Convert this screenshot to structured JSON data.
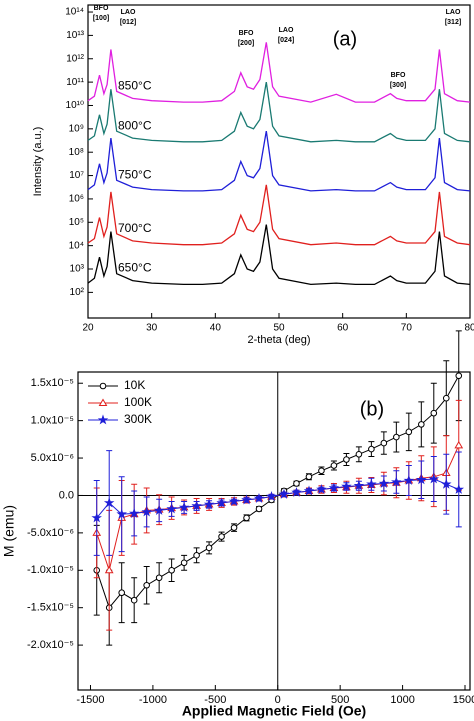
{
  "chart_data": [
    {
      "type": "line",
      "title": "(a)",
      "x_label": "2-theta (deg)",
      "y_label": "Intensity (a.u.)",
      "yscale": "log",
      "xlim": [
        20,
        80
      ],
      "xticks": [
        20,
        30,
        40,
        50,
        60,
        70,
        80
      ],
      "ylim": [
        8,
        200000000000000.0
      ],
      "yticks": [
        {
          "value": 100,
          "label": "10²"
        },
        {
          "value": 1000,
          "label": "10³"
        },
        {
          "value": 10000,
          "label": "10⁴"
        },
        {
          "value": 100000,
          "label": "10⁵"
        },
        {
          "value": 1000000,
          "label": "10⁶"
        },
        {
          "value": 10000000,
          "label": "10⁷"
        },
        {
          "value": 100000000,
          "label": "10⁸"
        },
        {
          "value": 1000000000,
          "label": "10⁹"
        },
        {
          "value": 10000000000,
          "label": "10¹⁰"
        },
        {
          "value": 100000000000,
          "label": "10¹¹"
        },
        {
          "value": 1000000000000,
          "label": "10¹²"
        },
        {
          "value": 10000000000000,
          "label": "10¹³"
        },
        {
          "value": 100000000000000,
          "label": "10¹⁴"
        }
      ],
      "annotations": [
        [
          "BFO",
          "[100]"
        ],
        [
          "LAO",
          "[012]"
        ],
        [
          "BFO",
          "[200]"
        ],
        [
          "LAO",
          "[024]"
        ],
        [
          "BFO",
          "[300]"
        ],
        [
          "LAO",
          "[312]"
        ]
      ],
      "x": [
        20,
        21,
        21.8,
        22.5,
        23,
        23.6,
        24.5,
        27,
        30,
        35,
        38,
        41,
        43,
        44,
        45,
        46,
        47,
        48,
        49,
        50,
        55,
        59,
        62,
        65,
        67.5,
        68.5,
        70,
        73,
        74.5,
        75.2,
        76,
        78,
        80
      ],
      "series": [
        {
          "name": "650°C",
          "color": "#000000",
          "values": [
            250,
            400,
            3200,
            500,
            1300,
            40000,
            630,
            320,
            250,
            220,
            220,
            250,
            630,
            4000,
            1000,
            800,
            2000,
            80000,
            1000,
            400,
            220,
            250,
            220,
            220,
            500,
            320,
            250,
            250,
            800,
            40000,
            500,
            250,
            220
          ]
        },
        {
          "name": "700°C",
          "color": "#e0201e",
          "values": [
            13000.0,
            20000.0,
            160000.0,
            25000.0,
            63000.0,
            2000000.0,
            32000.0,
            16000.0,
            13000.0,
            11000.0,
            11000.0,
            13000.0,
            32000.0,
            200000.0,
            50000.0,
            40000.0,
            100000.0,
            4000000.0,
            50000.0,
            20000.0,
            11000.0,
            13000.0,
            11000.0,
            11000.0,
            25000.0,
            16000.0,
            13000.0,
            13000.0,
            40000.0,
            2000000.0,
            25000.0,
            13000.0,
            11000.0
          ]
        },
        {
          "name": "750°C",
          "color": "#1f1fd8",
          "values": [
            2500000.0,
            4000000.0,
            32000000.0,
            5000000.0,
            13000000.0,
            400000000.0,
            6300000.0,
            3200000.0,
            2500000.0,
            2200000.0,
            2200000.0,
            2500000.0,
            6300000.0,
            40000000.0,
            10000000.0,
            8000000.0,
            20000000.0,
            800000000.0,
            10000000.0,
            4000000.0,
            2200000.0,
            2500000.0,
            2200000.0,
            2200000.0,
            5000000.0,
            3200000.0,
            2500000.0,
            2500000.0,
            8000000.0,
            400000000.0,
            5000000.0,
            2500000.0,
            2200000.0
          ]
        },
        {
          "name": "800°C",
          "color": "#1a7a72",
          "values": [
            320000000.0,
            500000000.0,
            4000000000.0,
            630000000.0,
            1600000000.0,
            50000000000.0,
            790000000.0,
            400000000.0,
            320000000.0,
            280000000.0,
            280000000.0,
            320000000.0,
            790000000.0,
            5000000000.0,
            1300000000.0,
            1000000000.0,
            2500000000.0,
            100000000000.0,
            1300000000.0,
            500000000.0,
            280000000.0,
            320000000.0,
            280000000.0,
            280000000.0,
            630000000.0,
            400000000.0,
            320000000.0,
            320000000.0,
            1000000000.0,
            50000000000.0,
            630000000.0,
            320000000.0,
            280000000.0
          ]
        },
        {
          "name": "850°C",
          "color": "#e020e0",
          "values": [
            16000000000.0,
            25000000000.0,
            200000000000.0,
            32000000000.0,
            79000000000.0,
            2500000000000.0,
            40000000000.0,
            20000000000.0,
            16000000000.0,
            14000000000.0,
            14000000000.0,
            16000000000.0,
            40000000000.0,
            250000000000.0,
            63000000000.0,
            50000000000.0,
            130000000000.0,
            5000000000000.0,
            63000000000.0,
            25000000000.0,
            14000000000.0,
            30000000000.0,
            14000000000.0,
            14000000000.0,
            32000000000.0,
            20000000000.0,
            16000000000.0,
            16000000000.0,
            50000000000.0,
            2500000000000.0,
            32000000000.0,
            16000000000.0,
            14000000000.0
          ]
        }
      ]
    },
    {
      "type": "errorbar",
      "title": "(b)",
      "x_label": "Applied Magnetic Field (Oe)",
      "y_label": "M (emu)",
      "xlim": [
        -1600,
        1540
      ],
      "xticks": [
        -1500,
        -1000,
        -500,
        0,
        500,
        1000,
        1500
      ],
      "ylim": [
        -2.6e-05,
        1.65e-05
      ],
      "yticks": [
        {
          "value": -2e-05,
          "label": "-2.0x10⁻⁵"
        },
        {
          "value": -1.5e-05,
          "label": "-1.5x10⁻⁵"
        },
        {
          "value": -1e-05,
          "label": "-1.0x10⁻⁵"
        },
        {
          "value": -5e-06,
          "label": "-5.0x10⁻⁶"
        },
        {
          "value": 0,
          "label": "0.0"
        },
        {
          "value": 5e-06,
          "label": "5.0x10⁻⁶"
        },
        {
          "value": 1e-05,
          "label": "1.0x10⁻⁵"
        },
        {
          "value": 1.5e-05,
          "label": "1.5x10⁻⁵"
        }
      ],
      "x": [
        -1450,
        -1350,
        -1250,
        -1150,
        -1050,
        -950,
        -850,
        -750,
        -650,
        -550,
        -450,
        -350,
        -250,
        -150,
        -50,
        50,
        150,
        250,
        350,
        450,
        550,
        650,
        750,
        850,
        950,
        1050,
        1150,
        1250,
        1350,
        1450
      ],
      "series": [
        {
          "name": "10K",
          "color": "#000000",
          "marker": "circle",
          "values": [
            -1e-05,
            -1.5e-05,
            -1.3e-05,
            -1.4e-05,
            -1.2e-05,
            -1.1e-05,
            -1e-05,
            -9e-06,
            -8e-06,
            -7e-06,
            -5.5e-06,
            -4.3e-06,
            -3e-06,
            -1.8e-06,
            -6e-07,
            6e-07,
            1.6e-06,
            2.5e-06,
            3.3e-06,
            4e-06,
            4.8e-06,
            5.5e-06,
            6.2e-06,
            7e-06,
            7.8e-06,
            8.5e-06,
            9.5e-06,
            1.1e-05,
            1.3e-05,
            1.6e-05
          ],
          "errors": [
            6e-06,
            5e-06,
            4e-06,
            3e-06,
            2.5e-06,
            2e-06,
            1.5e-06,
            1e-06,
            1e-06,
            8e-07,
            6e-07,
            5e-07,
            4e-07,
            3e-07,
            3e-07,
            3e-07,
            3e-07,
            4e-07,
            5e-07,
            6e-07,
            8e-07,
            1e-06,
            1e-06,
            1.5e-06,
            2e-06,
            2.5e-06,
            3e-06,
            4e-06,
            5e-06,
            6e-06
          ]
        },
        {
          "name": "100K",
          "color": "#e0201e",
          "marker": "triangle",
          "values": [
            -5e-06,
            -1e-05,
            -3e-06,
            -2.5e-06,
            -2e-06,
            -1.9e-06,
            -1.7e-06,
            -1.6e-06,
            -1.4e-06,
            -1.2e-06,
            -1e-06,
            -8e-07,
            -6e-07,
            -4e-07,
            -1.5e-07,
            1.5e-07,
            4e-07,
            6e-07,
            8e-07,
            1e-06,
            1.1e-06,
            1.3e-06,
            1.4e-06,
            1.6e-06,
            1.7e-06,
            2e-06,
            2.3e-06,
            2.5e-06,
            3e-06,
            6.7e-06
          ],
          "errors": [
            6e-06,
            8e-06,
            5e-06,
            4e-06,
            3e-06,
            2e-06,
            1.5e-06,
            1e-06,
            1e-06,
            8e-07,
            6e-07,
            5e-07,
            4e-07,
            3e-07,
            3e-07,
            3e-07,
            3e-07,
            4e-07,
            5e-07,
            6e-07,
            8e-07,
            1e-06,
            1e-06,
            1.5e-06,
            2e-06,
            2.5e-06,
            3e-06,
            4e-06,
            5e-06,
            6e-06
          ]
        },
        {
          "name": "300K",
          "color": "#1f1fd8",
          "marker": "star",
          "values": [
            -3e-06,
            -1e-06,
            -2.5e-06,
            -2.4e-06,
            -2.2e-06,
            -2e-06,
            -1.8e-06,
            -1.6e-06,
            -1.4e-06,
            -1.2e-06,
            -1e-06,
            -8e-07,
            -6e-07,
            -4e-07,
            -1.5e-07,
            1.5e-07,
            4e-07,
            6e-07,
            8e-07,
            1e-06,
            1.2e-06,
            1.3e-06,
            1.5e-06,
            1.6e-06,
            1.8e-06,
            2e-06,
            2.1e-06,
            2.2e-06,
            1.5e-06,
            8e-07
          ],
          "errors": [
            5e-06,
            7e-06,
            5e-06,
            3e-06,
            2e-06,
            1.5e-06,
            1e-06,
            8e-07,
            6e-07,
            5e-07,
            4e-07,
            3e-07,
            3e-07,
            3e-07,
            3e-07,
            3e-07,
            3e-07,
            3e-07,
            3e-07,
            4e-07,
            5e-07,
            6e-07,
            8e-07,
            1e-06,
            1.5e-06,
            2e-06,
            2.5e-06,
            3e-06,
            4e-06,
            5e-06
          ]
        }
      ]
    }
  ]
}
